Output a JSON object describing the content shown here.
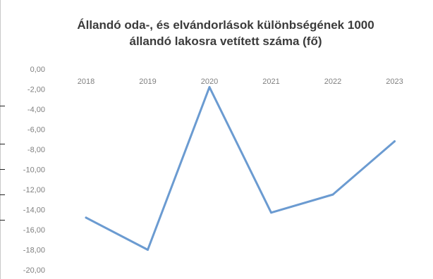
{
  "chart_data": {
    "type": "line",
    "title_line1": "Állandó oda-, és elvándorlások különbségének 1000",
    "title_line2": "állandó lakosra vetített száma (fő)",
    "categories": [
      "2018",
      "2019",
      "2020",
      "2021",
      "2022",
      "2023"
    ],
    "series": [
      {
        "values": [
          -14.8,
          -18.0,
          -1.8,
          -14.3,
          -12.5,
          -7.2
        ]
      }
    ],
    "ylim": [
      -20,
      0
    ],
    "y_step": 2,
    "y_tick_labels": [
      "0,00",
      "-2,00",
      "-4,00",
      "-6,00",
      "-8,00",
      "-10,00",
      "-12,00",
      "-14,00",
      "-16,00",
      "-18,00",
      "-20,00"
    ],
    "x_axis_position": "top",
    "grid": false,
    "legend": "none",
    "line_color": "#6b9bd1",
    "tick_color": "#7f7f7f"
  }
}
